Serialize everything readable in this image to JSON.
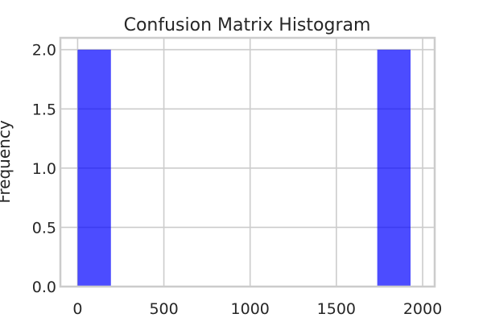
{
  "chart_data": {
    "type": "bar",
    "title": "Confusion Matrix Histogram",
    "xlabel": "",
    "ylabel": "Frequency",
    "bins": [
      {
        "x0": 0,
        "x1": 193,
        "count": 2
      },
      {
        "x0": 193,
        "x1": 386,
        "count": 0
      },
      {
        "x0": 386,
        "x1": 579,
        "count": 0
      },
      {
        "x0": 579,
        "x1": 772,
        "count": 0
      },
      {
        "x0": 772,
        "x1": 965,
        "count": 0
      },
      {
        "x0": 965,
        "x1": 1158,
        "count": 0
      },
      {
        "x0": 1158,
        "x1": 1351,
        "count": 0
      },
      {
        "x0": 1351,
        "x1": 1544,
        "count": 0
      },
      {
        "x0": 1544,
        "x1": 1737,
        "count": 0
      },
      {
        "x0": 1737,
        "x1": 1930,
        "count": 2
      }
    ],
    "xlim": [
      -100,
      2070
    ],
    "ylim": [
      0,
      2.1
    ],
    "xticks": [
      0,
      500,
      1000,
      1500,
      2000
    ],
    "xtick_labels": [
      "0",
      "500",
      "1000",
      "1500",
      "2000"
    ],
    "yticks": [
      0,
      0.5,
      1.0,
      1.5,
      2.0
    ],
    "ytick_labels": [
      "0.0",
      "0.5",
      "1.0",
      "1.5",
      "2.0"
    ],
    "bar_color": "#0000ff",
    "bar_opacity": 0.7,
    "grid": true
  }
}
